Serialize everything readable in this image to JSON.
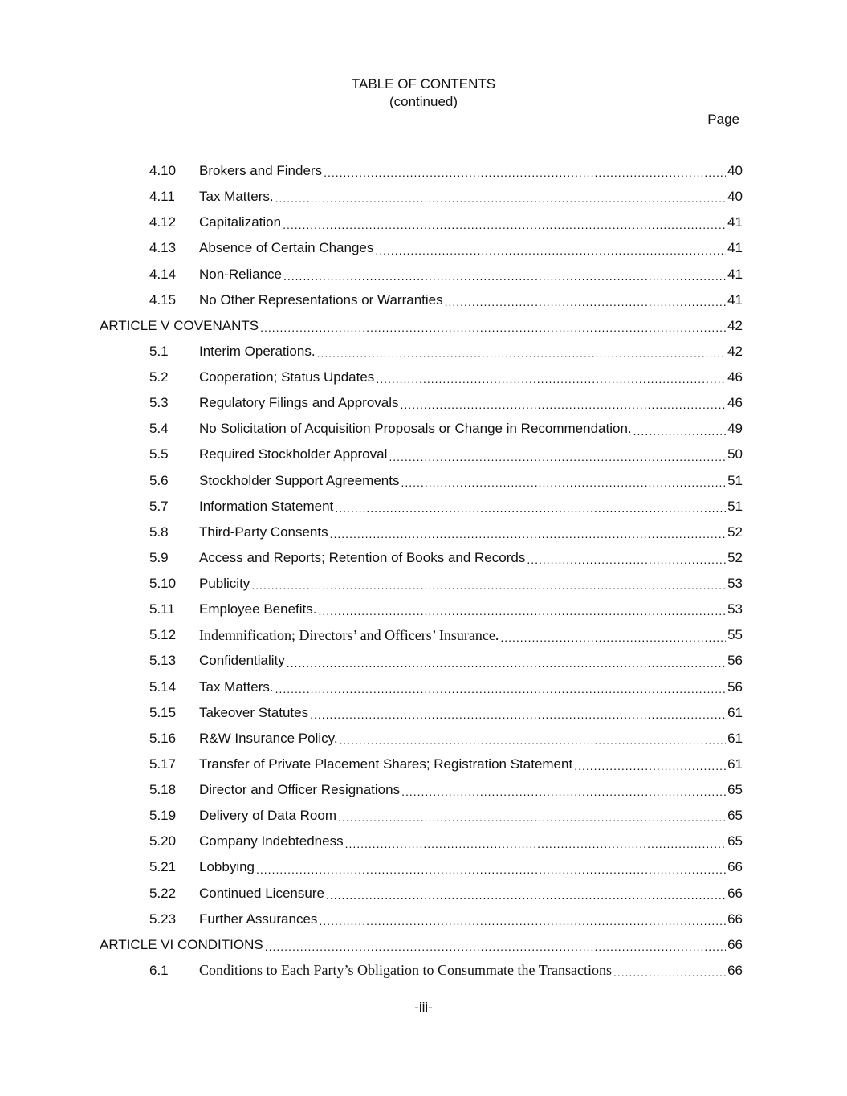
{
  "header": {
    "title": "TABLE OF CONTENTS",
    "subtitle": "(continued)",
    "page_label": "Page"
  },
  "entries": [
    {
      "num": "4.10",
      "label": "Brokers and Finders",
      "page": "40"
    },
    {
      "num": "4.11",
      "label": "Tax Matters.",
      "page": "40"
    },
    {
      "num": "4.12",
      "label": "Capitalization",
      "page": "41"
    },
    {
      "num": "4.13",
      "label": "Absence of Certain Changes",
      "page": "41"
    },
    {
      "num": "4.14",
      "label": "Non-Reliance",
      "page": "41"
    },
    {
      "num": "4.15",
      "label": "No Other Representations or Warranties",
      "page": "41"
    },
    {
      "num": "",
      "label": "ARTICLE V COVENANTS",
      "page": "42",
      "article": true
    },
    {
      "num": "5.1",
      "label": "Interim Operations.",
      "page": "42"
    },
    {
      "num": "5.2",
      "label": "Cooperation; Status Updates",
      "page": "46"
    },
    {
      "num": "5.3",
      "label": "Regulatory Filings and Approvals",
      "page": "46"
    },
    {
      "num": "5.4",
      "label": "No Solicitation of Acquisition Proposals or Change in Recommendation.",
      "page": "49"
    },
    {
      "num": "5.5",
      "label": "Required Stockholder Approval",
      "page": "50"
    },
    {
      "num": "5.6",
      "label": "Stockholder Support Agreements",
      "page": "51"
    },
    {
      "num": "5.7",
      "label": "Information Statement",
      "page": "51"
    },
    {
      "num": "5.8",
      "label": "Third-Party Consents",
      "page": "52"
    },
    {
      "num": "5.9",
      "label": "Access and Reports; Retention of Books and Records",
      "page": "52"
    },
    {
      "num": "5.10",
      "label": "Publicity",
      "page": "53"
    },
    {
      "num": "5.11",
      "label": "Employee Benefits.",
      "page": "53"
    },
    {
      "num": "5.12",
      "label": "Indemnification; Directors’ and Officers’ Insurance.",
      "page": "55",
      "serif": true
    },
    {
      "num": "5.13",
      "label": "Confidentiality",
      "page": "56"
    },
    {
      "num": "5.14",
      "label": "Tax Matters.",
      "page": "56"
    },
    {
      "num": "5.15",
      "label": "Takeover Statutes",
      "page": "61"
    },
    {
      "num": "5.16",
      "label": "R&W Insurance Policy.",
      "page": "61"
    },
    {
      "num": "5.17",
      "label": "Transfer of Private Placement Shares; Registration Statement",
      "page": "61"
    },
    {
      "num": "5.18",
      "label": "Director and Officer Resignations",
      "page": "65"
    },
    {
      "num": "5.19",
      "label": "Delivery of Data Room",
      "page": "65"
    },
    {
      "num": "5.20",
      "label": "Company Indebtedness",
      "page": "65"
    },
    {
      "num": "5.21",
      "label": "Lobbying",
      "page": "66"
    },
    {
      "num": "5.22",
      "label": "Continued Licensure",
      "page": "66"
    },
    {
      "num": "5.23",
      "label": "Further Assurances",
      "page": "66"
    },
    {
      "num": "",
      "label": "ARTICLE VI CONDITIONS",
      "page": "66",
      "article": true
    },
    {
      "num": "6.1",
      "label": "Conditions to Each Party’s Obligation to Consummate the Transactions",
      "page": "66",
      "serif": true
    }
  ],
  "footer": {
    "page_number": "-iii-"
  }
}
